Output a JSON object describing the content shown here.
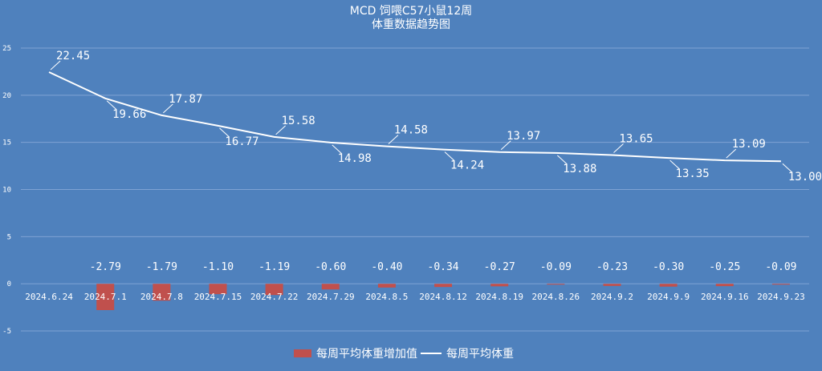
{
  "chart_data": {
    "type": "bar",
    "title": "MCD 饲喂C57小鼠12周",
    "subtitle": "体重数据趋势图",
    "categories": [
      "2024.6.24",
      "2024.7.1",
      "2024.7.8",
      "2024.7.15",
      "2024.7.22",
      "2024.7.29",
      "2024.8.5",
      "2024.8.12",
      "2024.8.19",
      "2024.8.26",
      "2024.9.2",
      "2024.9.9",
      "2024.9.16",
      "2024.9.23"
    ],
    "ylim": [
      -5,
      25
    ],
    "yticks": [
      -5,
      0,
      5,
      10,
      15,
      20,
      25
    ],
    "grid": true,
    "legend_position": "bottom",
    "series": [
      {
        "name": "每周平均体重增加值",
        "kind": "bar",
        "color": "#c0504d",
        "values": [
          null,
          -2.79,
          -1.79,
          -1.1,
          -1.19,
          -0.6,
          -0.4,
          -0.34,
          -0.27,
          -0.09,
          -0.23,
          -0.3,
          -0.25,
          -0.09
        ],
        "labels": [
          "",
          "-2.79",
          "-1.79",
          "-1.10",
          "-1.19",
          "-0.60",
          "-0.40",
          "-0.34",
          "-0.27",
          "-0.09",
          "-0.23",
          "-0.30",
          "-0.25",
          "-0.09"
        ]
      },
      {
        "name": "每周平均体重",
        "kind": "line",
        "color": "#ffffff",
        "values": [
          22.45,
          19.66,
          17.87,
          16.77,
          15.58,
          14.98,
          14.58,
          14.24,
          13.97,
          13.88,
          13.65,
          13.35,
          13.09,
          13.0
        ],
        "labels": [
          "22.45",
          "19.66",
          "17.87",
          "16.77",
          "15.58",
          "14.98",
          "14.58",
          "14.24",
          "13.97",
          "13.88",
          "13.65",
          "13.35",
          "13.09",
          "13.00"
        ]
      }
    ]
  },
  "colors": {
    "background": "#4f81bd",
    "grid": "#7fa3d4",
    "text": "#ffffff"
  }
}
